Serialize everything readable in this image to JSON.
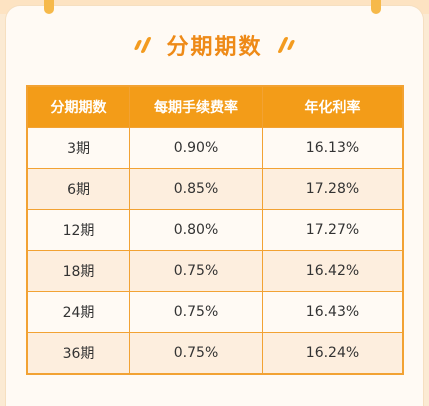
{
  "title": "分期期数",
  "table": {
    "headers": [
      "分期期数",
      "每期手续费率",
      "年化利率"
    ],
    "rows": [
      [
        "3期",
        "0.90%",
        "16.13%"
      ],
      [
        "6期",
        "0.85%",
        "17.28%"
      ],
      [
        "12期",
        "0.80%",
        "17.27%"
      ],
      [
        "18期",
        "0.75%",
        "16.42%"
      ],
      [
        "24期",
        "0.75%",
        "16.43%"
      ],
      [
        "36期",
        "0.75%",
        "16.24%"
      ]
    ]
  },
  "colors": {
    "accent": "#f39c18",
    "title": "#ee8a17",
    "row_alt": "#fdeede",
    "background": "#fbead3"
  }
}
